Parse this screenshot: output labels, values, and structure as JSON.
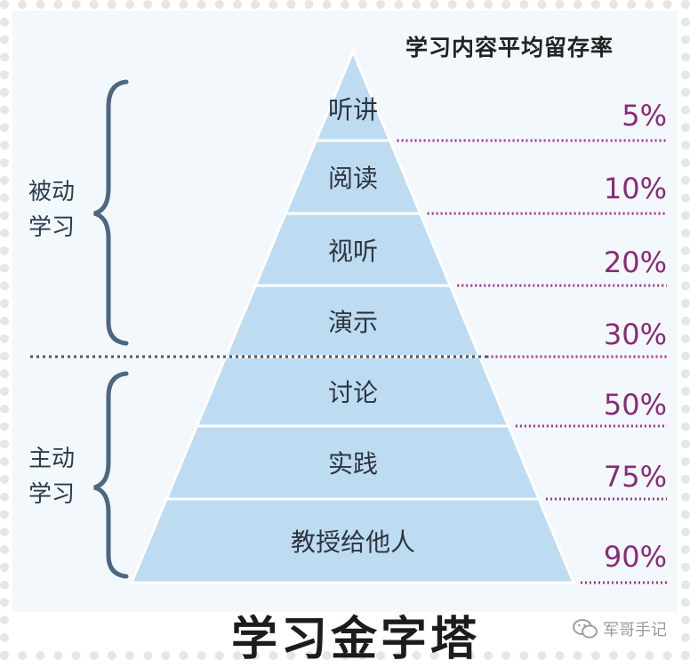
{
  "header": {
    "title": "学习内容平均留存率"
  },
  "groups": {
    "passive": [
      "被动",
      "学习"
    ],
    "active": [
      "主动",
      "学习"
    ]
  },
  "levels": [
    {
      "label": "听讲",
      "rate": "5%"
    },
    {
      "label": "阅读",
      "rate": "10%"
    },
    {
      "label": "视听",
      "rate": "20%"
    },
    {
      "label": "演示",
      "rate": "30%"
    },
    {
      "label": "讨论",
      "rate": "50%"
    },
    {
      "label": "实践",
      "rate": "75%"
    },
    {
      "label": "教授给他人",
      "rate": "90%"
    }
  ],
  "title": "学习金字塔",
  "watermark": {
    "text": "军哥手记",
    "icon": "wechat-icon"
  },
  "colors": {
    "panel": "#f3f8fc",
    "pyramid_fill": "#bddcf2",
    "pyramid_edge": "#ffffff",
    "bracket": "#4d6780",
    "percent": "#8a2a78",
    "leader": "#a3348f"
  }
}
